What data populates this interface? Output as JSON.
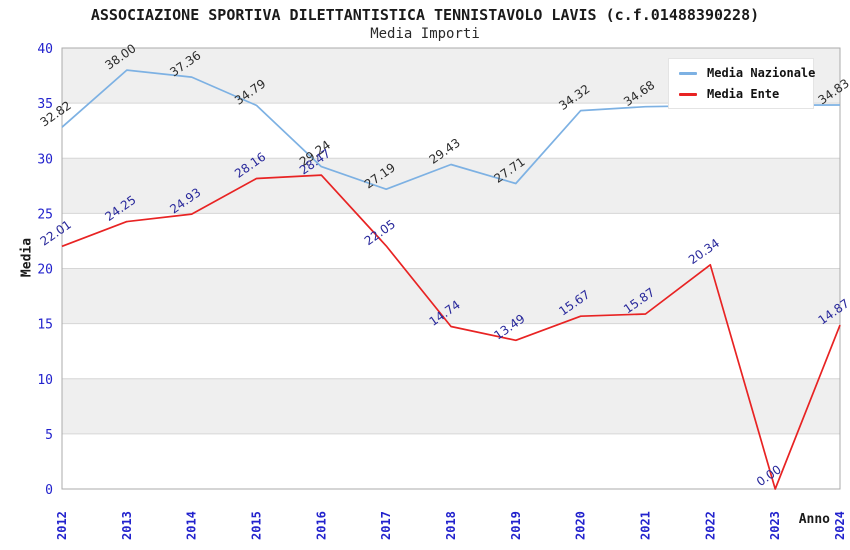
{
  "header": {
    "title": "ASSOCIAZIONE SPORTIVA DILETTANTISTICA TENNISTAVOLO LAVIS (c.f.01488390228)",
    "subtitle": "Media Importi"
  },
  "chart_data": {
    "type": "line",
    "title": "ASSOCIAZIONE SPORTIVA DILETTANTISTICA TENNISTAVOLO LAVIS (c.f.01488390228)",
    "subtitle": "Media Importi",
    "xlabel": "Anno",
    "ylabel": "Media",
    "ylim": [
      0,
      40
    ],
    "ytick_step": 5,
    "grid": "horizontal gridlines every 5 units with alternating gray/white bands",
    "legend_position": "top-right",
    "categories": [
      "2012",
      "2013",
      "2014",
      "2015",
      "2016",
      "2017",
      "2018",
      "2019",
      "2020",
      "2021",
      "2022",
      "2023",
      "2024"
    ],
    "series": [
      {
        "name": "Media Nazionale",
        "color": "#7db1e3",
        "label_color": "#2b2b2b",
        "values": [
          32.82,
          38.0,
          37.36,
          34.79,
          29.24,
          27.19,
          29.43,
          27.71,
          34.32,
          34.68,
          34.78,
          34.82,
          34.83
        ],
        "point_labels": [
          "32.82",
          "38.00",
          "37.36",
          "34.79",
          "29.24",
          "27.19",
          "29.43",
          "27.71",
          "34.32",
          "34.68",
          "",
          "",
          "34.83"
        ]
      },
      {
        "name": "Media Ente",
        "color": "#e82323",
        "label_color": "#28289b",
        "values": [
          22.01,
          24.25,
          24.93,
          28.16,
          28.47,
          22.05,
          14.74,
          13.49,
          15.67,
          15.87,
          20.34,
          0.0,
          14.87
        ],
        "point_labels": [
          "22.01",
          "24.25",
          "24.93",
          "28.16",
          "28.47",
          "22.05",
          "14.74",
          "13.49",
          "15.67",
          "15.87",
          "20.34",
          "0.00",
          "14.87"
        ]
      }
    ]
  },
  "colors": {
    "tick_label": "#2222cd",
    "axis_title": "#1a1a1a",
    "band_gray": "#efefef",
    "gridline": "#d6d6d6",
    "plot_border": "#ababab",
    "background": "#ffffff",
    "legend_background": "#ffffff"
  }
}
